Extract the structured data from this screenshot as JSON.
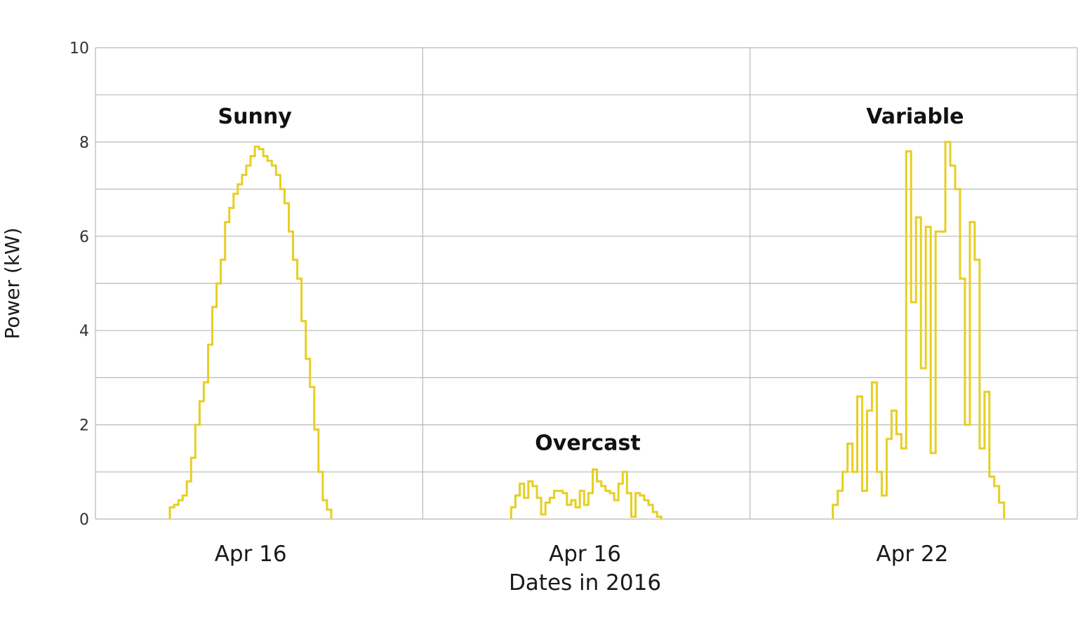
{
  "chart_data": {
    "type": "line",
    "step": true,
    "ylabel": "Power (kW)",
    "xlabel": "Dates in 2016",
    "ylim": [
      0,
      10
    ],
    "yticks": [
      0,
      2,
      4,
      6,
      8,
      10
    ],
    "grid": true,
    "line_color": "#e6cf22",
    "panels": [
      {
        "category": "Apr 16",
        "annotation": "Sunny",
        "series": [
          {
            "values": [
              0.25,
              0.3,
              0.4,
              0.5,
              0.8,
              1.3,
              2.0,
              2.5,
              2.9,
              3.7,
              4.5,
              5.0,
              5.5,
              6.3,
              6.6,
              6.9,
              7.1,
              7.3,
              7.5,
              7.7,
              7.9,
              7.85,
              7.7,
              7.6,
              7.5,
              7.3,
              7.0,
              6.7,
              6.1,
              5.5,
              5.1,
              4.2,
              3.4,
              2.8,
              1.9,
              1.0,
              0.4,
              0.2
            ]
          }
        ]
      },
      {
        "category": "Apr 16",
        "annotation": "Overcast",
        "series": [
          {
            "values": [
              0.25,
              0.5,
              0.75,
              0.45,
              0.8,
              0.7,
              0.45,
              0.1,
              0.35,
              0.45,
              0.6,
              0.6,
              0.55,
              0.3,
              0.4,
              0.25,
              0.6,
              0.3,
              0.55,
              1.05,
              0.8,
              0.7,
              0.6,
              0.55,
              0.4,
              0.75,
              1.0,
              0.55,
              0.05,
              0.55,
              0.5,
              0.4,
              0.3,
              0.15,
              0.05
            ]
          }
        ]
      },
      {
        "category": "Apr 22",
        "annotation": "Variable",
        "series": [
          {
            "values": [
              0.3,
              0.6,
              1.0,
              1.6,
              1.0,
              2.6,
              0.6,
              2.3,
              2.9,
              1.0,
              0.5,
              1.7,
              2.3,
              1.8,
              1.5,
              7.8,
              4.6,
              6.4,
              3.2,
              6.2,
              1.4,
              6.1,
              6.1,
              8.0,
              7.5,
              7.0,
              5.1,
              2.0,
              6.3,
              5.5,
              1.5,
              2.7,
              0.9,
              0.7,
              0.35
            ]
          }
        ]
      }
    ]
  }
}
